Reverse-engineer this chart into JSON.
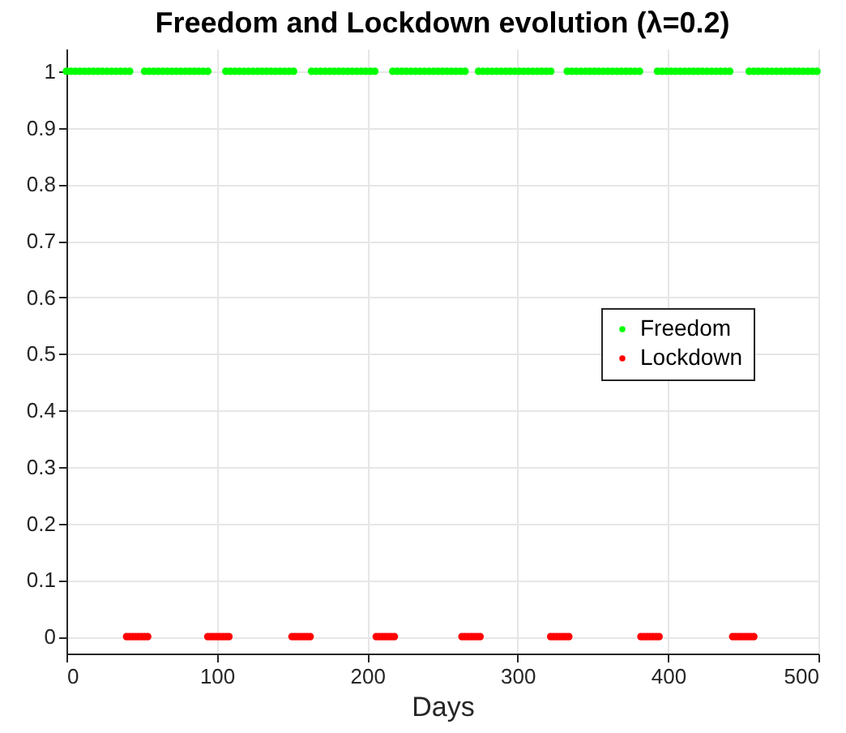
{
  "chart_data": {
    "type": "scatter",
    "title": "Freedom and Lockdown evolution (λ=0.2)",
    "xlabel": "Days",
    "xlim": [
      0,
      500
    ],
    "xticks": [
      0,
      100,
      200,
      300,
      400,
      500
    ],
    "ylim": [
      -0.03,
      1.04
    ],
    "yticks": [
      0,
      0.1,
      0.2,
      0.3,
      0.4,
      0.5,
      0.6,
      0.7,
      0.8,
      0.9,
      1
    ],
    "grid": true,
    "legend": "right",
    "marker": "circle",
    "series": [
      {
        "name": "Freedom",
        "color": "#00ff00",
        "x": [
          0,
          3,
          6,
          9,
          12,
          15,
          18,
          21,
          24,
          27,
          30,
          33,
          36,
          39,
          42,
          52,
          55,
          58,
          61,
          64,
          67,
          70,
          73,
          76,
          79,
          82,
          85,
          88,
          91,
          94,
          106,
          109,
          112,
          115,
          118,
          121,
          124,
          127,
          130,
          133,
          136,
          139,
          142,
          145,
          148,
          151,
          163,
          166,
          169,
          172,
          175,
          178,
          181,
          184,
          187,
          190,
          193,
          196,
          199,
          202,
          205,
          217,
          220,
          223,
          226,
          229,
          232,
          235,
          238,
          241,
          244,
          247,
          250,
          253,
          256,
          259,
          262,
          265,
          274,
          277,
          280,
          283,
          286,
          289,
          292,
          295,
          298,
          301,
          304,
          307,
          310,
          313,
          316,
          319,
          322,
          333,
          336,
          339,
          342,
          345,
          348,
          351,
          354,
          357,
          360,
          363,
          366,
          369,
          372,
          375,
          378,
          381,
          393,
          396,
          399,
          402,
          405,
          408,
          411,
          414,
          417,
          420,
          423,
          426,
          429,
          432,
          435,
          438,
          441,
          454,
          457,
          460,
          463,
          466,
          469,
          472,
          475,
          478,
          481,
          484,
          487,
          490,
          493,
          496,
          499
        ],
        "values": [
          1,
          1,
          1,
          1,
          1,
          1,
          1,
          1,
          1,
          1,
          1,
          1,
          1,
          1,
          1,
          1,
          1,
          1,
          1,
          1,
          1,
          1,
          1,
          1,
          1,
          1,
          1,
          1,
          1,
          1,
          1,
          1,
          1,
          1,
          1,
          1,
          1,
          1,
          1,
          1,
          1,
          1,
          1,
          1,
          1,
          1,
          1,
          1,
          1,
          1,
          1,
          1,
          1,
          1,
          1,
          1,
          1,
          1,
          1,
          1,
          1,
          1,
          1,
          1,
          1,
          1,
          1,
          1,
          1,
          1,
          1,
          1,
          1,
          1,
          1,
          1,
          1,
          1,
          1,
          1,
          1,
          1,
          1,
          1,
          1,
          1,
          1,
          1,
          1,
          1,
          1,
          1,
          1,
          1,
          1,
          1,
          1,
          1,
          1,
          1,
          1,
          1,
          1,
          1,
          1,
          1,
          1,
          1,
          1,
          1,
          1,
          1,
          1,
          1,
          1,
          1,
          1,
          1,
          1,
          1,
          1,
          1,
          1,
          1,
          1,
          1,
          1,
          1,
          1,
          1,
          1,
          1,
          1,
          1,
          1,
          1,
          1,
          1,
          1,
          1,
          1,
          1,
          1,
          1,
          1
        ]
      },
      {
        "name": "Lockdown",
        "color": "#ff0000",
        "x": [
          40,
          42,
          44,
          46,
          48,
          50,
          52,
          54,
          94,
          96,
          98,
          100,
          102,
          104,
          106,
          108,
          150,
          152,
          154,
          156,
          158,
          160,
          162,
          206,
          208,
          210,
          212,
          214,
          216,
          218,
          263,
          265,
          267,
          269,
          271,
          273,
          275,
          322,
          324,
          326,
          328,
          330,
          332,
          334,
          382,
          384,
          386,
          388,
          390,
          392,
          394,
          443,
          445,
          447,
          449,
          451,
          453,
          455,
          457
        ],
        "values": [
          0,
          0,
          0,
          0,
          0,
          0,
          0,
          0,
          0,
          0,
          0,
          0,
          0,
          0,
          0,
          0,
          0,
          0,
          0,
          0,
          0,
          0,
          0,
          0,
          0,
          0,
          0,
          0,
          0,
          0,
          0,
          0,
          0,
          0,
          0,
          0,
          0,
          0,
          0,
          0,
          0,
          0,
          0,
          0,
          0,
          0,
          0,
          0,
          0,
          0,
          0,
          0,
          0,
          0,
          0,
          0,
          0,
          0,
          0
        ]
      }
    ]
  }
}
